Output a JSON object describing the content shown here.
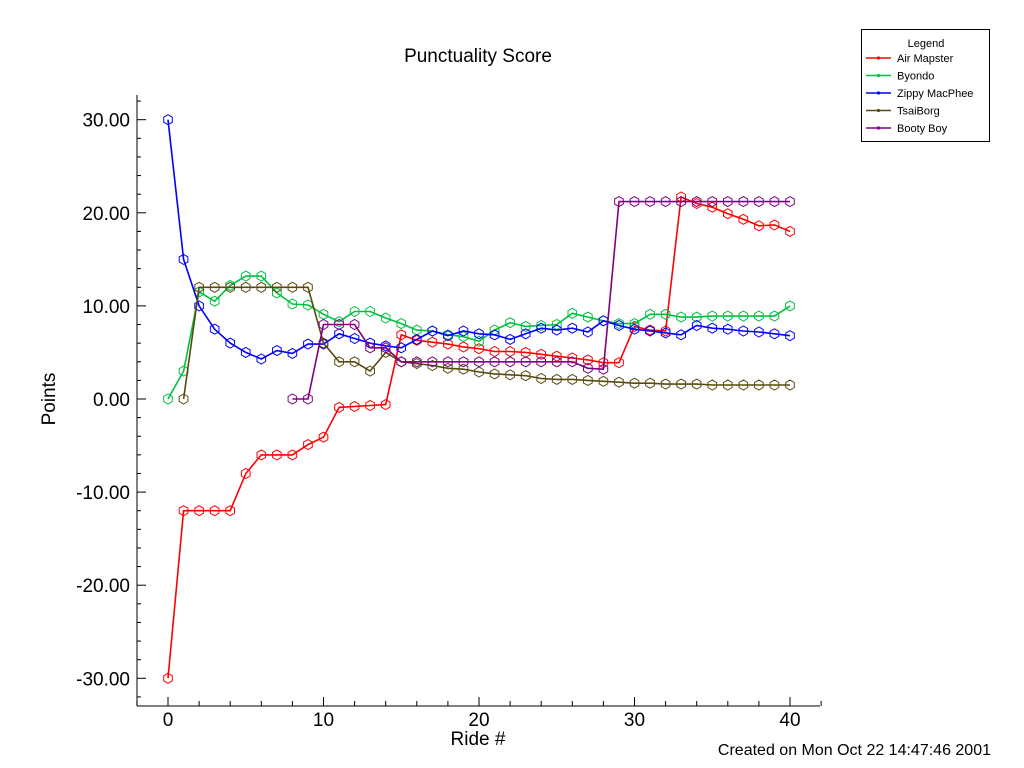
{
  "chart_data": {
    "type": "line",
    "title": "Punctuality Score",
    "xlabel": "Ride #",
    "ylabel": "Points",
    "xlim": [
      -2,
      42
    ],
    "ylim": [
      -33,
      33
    ],
    "xticks": [
      0,
      10,
      20,
      30,
      40
    ],
    "xtick_labels": [
      "0",
      "10",
      "20",
      "30",
      "40"
    ],
    "yticks": [
      -30,
      -20,
      -10,
      0,
      10,
      20,
      30
    ],
    "ytick_labels": [
      "-30.00",
      "-20.00",
      "-10.00",
      "0.00",
      "10.00",
      "20.00",
      "30.00"
    ],
    "marker": "hexagon-open",
    "grid": false,
    "legend_title": "Legend",
    "legend_position": "top-right",
    "series": [
      {
        "name": "Air Mapster",
        "color": "#ff0000",
        "x": [
          0,
          1,
          2,
          3,
          4,
          5,
          6,
          7,
          8,
          9,
          10,
          11,
          12,
          13,
          14,
          15,
          16,
          17,
          18,
          19,
          20,
          21,
          22,
          23,
          24,
          25,
          26,
          27,
          28,
          29,
          30,
          31,
          32,
          33,
          34,
          35,
          36,
          37,
          38,
          39,
          40
        ],
        "y": [
          -30,
          -12,
          -12,
          -12,
          -12,
          -8,
          -6,
          -6,
          -6,
          -4.9,
          -4.1,
          -0.9,
          -0.8,
          -0.7,
          -0.6,
          6.9,
          6.3,
          6.1,
          5.9,
          5.6,
          5.4,
          5.1,
          5.1,
          5,
          4.8,
          4.6,
          4.4,
          4.2,
          3.9,
          3.9,
          7.8,
          7.4,
          7.3,
          21.7,
          21,
          20.6,
          19.9,
          19.3,
          18.6,
          18.7,
          18
        ]
      },
      {
        "name": "Byondo",
        "color": "#00c040",
        "x": [
          0,
          1,
          2,
          3,
          4,
          5,
          6,
          7,
          8,
          9,
          10,
          11,
          12,
          13,
          14,
          15,
          16,
          17,
          18,
          19,
          20,
          21,
          22,
          23,
          24,
          25,
          26,
          27,
          28,
          29,
          30,
          31,
          32,
          33,
          34,
          35,
          36,
          37,
          38,
          39,
          40
        ],
        "y": [
          0,
          3,
          11.5,
          10.5,
          12.2,
          13.2,
          13.2,
          11.4,
          10.2,
          10.1,
          9.1,
          8.3,
          9.4,
          9.4,
          8.7,
          8.1,
          7.4,
          7.3,
          6.9,
          6.7,
          6.2,
          7.4,
          8.2,
          7.8,
          7.9,
          8,
          9.2,
          8.8,
          8.4,
          8.1,
          8.1,
          9.1,
          9.1,
          8.8,
          8.8,
          8.9,
          8.9,
          8.9,
          8.9,
          8.9,
          10
        ]
      },
      {
        "name": "Zippy MacPhee",
        "color": "#0000ff",
        "x": [
          0,
          1,
          2,
          3,
          4,
          5,
          6,
          7,
          8,
          9,
          10,
          11,
          12,
          13,
          14,
          15,
          16,
          17,
          18,
          19,
          20,
          21,
          22,
          23,
          24,
          25,
          26,
          27,
          28,
          29,
          30,
          31,
          32,
          33,
          34,
          35,
          36,
          37,
          38,
          39,
          40
        ],
        "y": [
          30,
          15,
          10,
          7.5,
          6,
          5,
          4.3,
          5.2,
          4.9,
          5.9,
          5.9,
          7,
          6.5,
          6,
          5.7,
          5.5,
          6.4,
          7.3,
          6.8,
          7.3,
          7,
          6.9,
          6.4,
          7,
          7.6,
          7.4,
          7.6,
          7.2,
          8.4,
          7.9,
          7.5,
          7.3,
          7.1,
          6.9,
          7.9,
          7.6,
          7.5,
          7.3,
          7.2,
          7,
          6.8
        ]
      },
      {
        "name": "TsaiBorg",
        "color": "#5a4a10",
        "x": [
          1,
          2,
          3,
          4,
          5,
          6,
          7,
          8,
          9,
          10,
          11,
          12,
          13,
          14,
          15,
          16,
          17,
          18,
          19,
          20,
          21,
          22,
          23,
          24,
          25,
          26,
          27,
          28,
          29,
          30,
          31,
          32,
          33,
          34,
          35,
          36,
          37,
          38,
          39,
          40
        ],
        "y": [
          0,
          12,
          12,
          12,
          12,
          12,
          12,
          12,
          12,
          6,
          4,
          4,
          3,
          5,
          4,
          3.8,
          3.6,
          3.3,
          3.2,
          2.9,
          2.7,
          2.6,
          2.5,
          2.2,
          2.1,
          2.1,
          2,
          1.9,
          1.8,
          1.7,
          1.7,
          1.6,
          1.6,
          1.6,
          1.5,
          1.5,
          1.5,
          1.5,
          1.5,
          1.5
        ]
      },
      {
        "name": "Booty Boy",
        "color": "#800080",
        "x": [
          8,
          9,
          10,
          11,
          12,
          13,
          14,
          15,
          16,
          17,
          18,
          19,
          20,
          21,
          22,
          23,
          24,
          25,
          26,
          27,
          28,
          29,
          30,
          31,
          32,
          33,
          34,
          35,
          36,
          37,
          38,
          39,
          40
        ],
        "y": [
          0,
          0,
          8,
          8,
          8,
          5.5,
          5.5,
          4,
          4,
          4,
          4,
          4,
          4,
          4,
          4,
          4,
          4,
          4,
          4,
          3.3,
          3.2,
          21.2,
          21.2,
          21.2,
          21.2,
          21.2,
          21.2,
          21.2,
          21.2,
          21.2,
          21.2,
          21.2,
          21.2
        ]
      }
    ]
  },
  "footer": {
    "created_text": "Created on Mon Oct 22 14:47:46 2001"
  }
}
